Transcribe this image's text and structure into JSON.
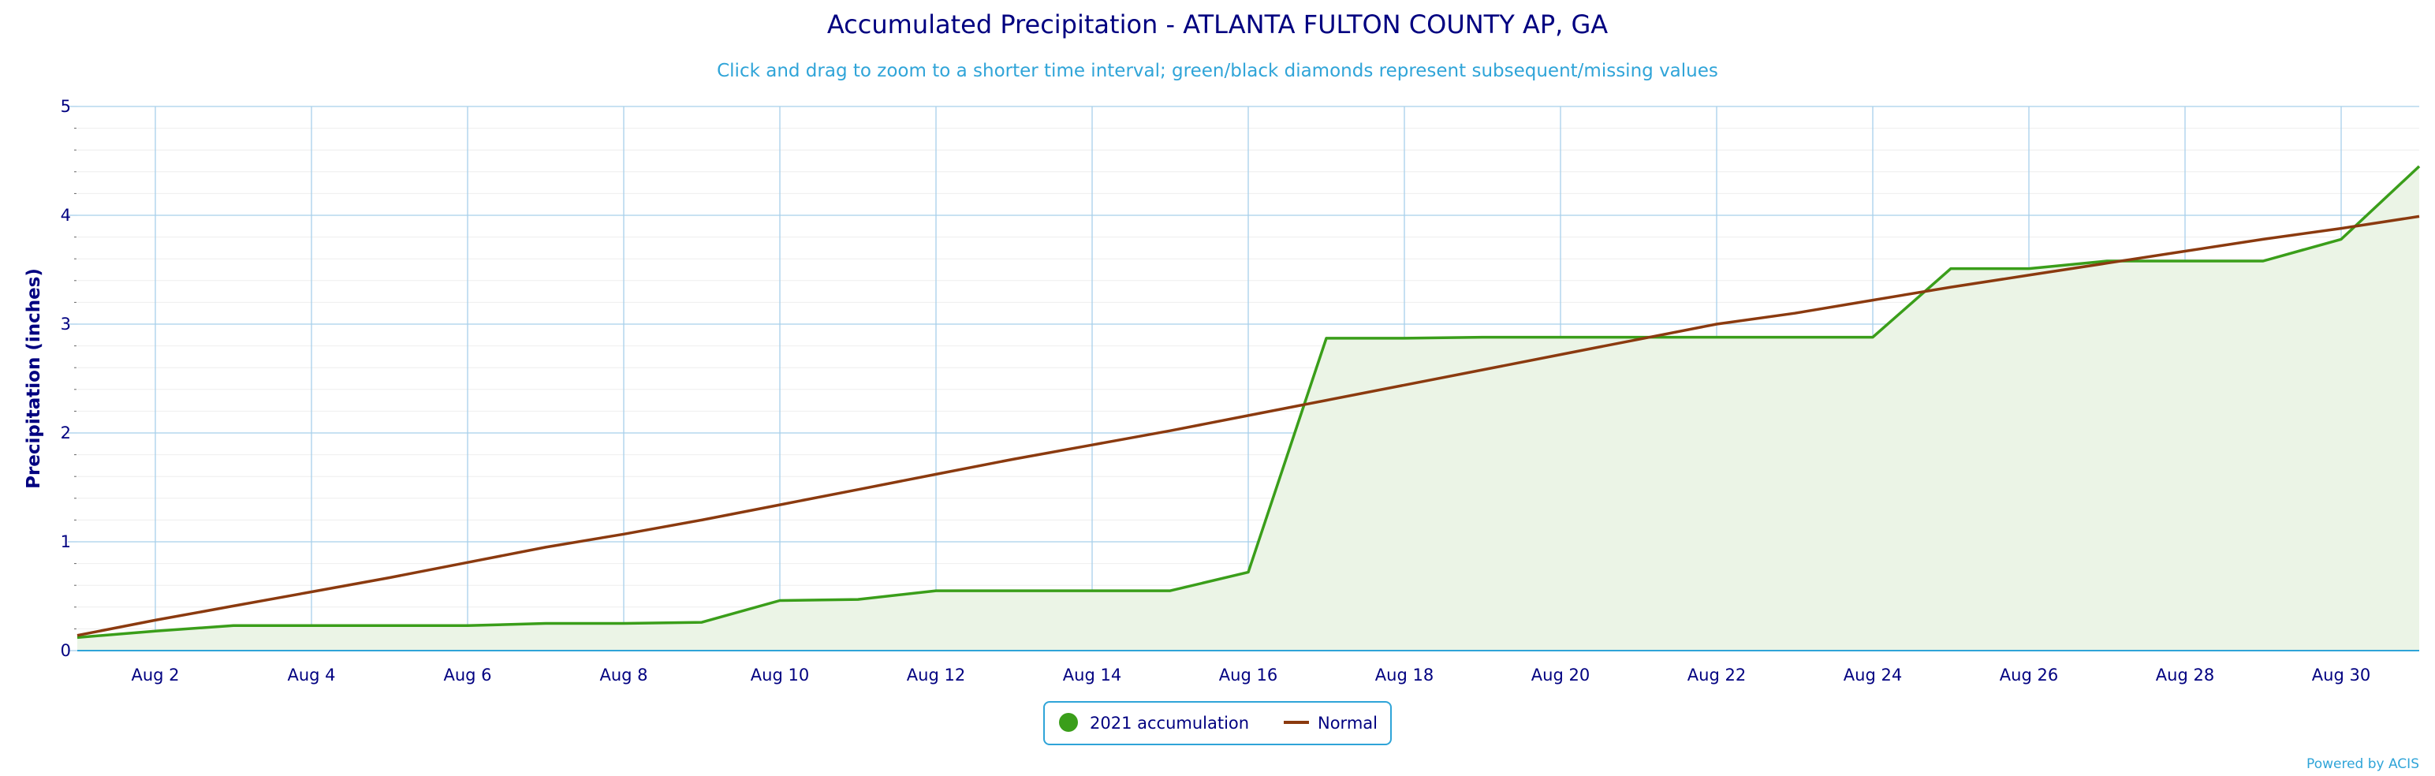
{
  "chart_data": {
    "type": "line",
    "title": "Accumulated Precipitation - ATLANTA FULTON COUNTY AP, GA",
    "subtitle": "Click and drag to zoom to a shorter time interval; green/black diamonds represent subsequent/missing values",
    "xlabel": "",
    "ylabel": "Precipitation (inches)",
    "ylim": [
      0,
      5
    ],
    "yticks": [
      "0",
      "1",
      "2",
      "3",
      "4",
      "5"
    ],
    "x": [
      "Aug 1",
      "Aug 2",
      "Aug 3",
      "Aug 4",
      "Aug 5",
      "Aug 6",
      "Aug 7",
      "Aug 8",
      "Aug 9",
      "Aug 10",
      "Aug 11",
      "Aug 12",
      "Aug 13",
      "Aug 14",
      "Aug 15",
      "Aug 16",
      "Aug 17",
      "Aug 18",
      "Aug 19",
      "Aug 20",
      "Aug 21",
      "Aug 22",
      "Aug 23",
      "Aug 24",
      "Aug 25",
      "Aug 26",
      "Aug 27",
      "Aug 28",
      "Aug 29",
      "Aug 30",
      "Aug 31"
    ],
    "xticks": [
      "Aug 2",
      "Aug 4",
      "Aug 6",
      "Aug 8",
      "Aug 10",
      "Aug 12",
      "Aug 14",
      "Aug 16",
      "Aug 18",
      "Aug 20",
      "Aug 22",
      "Aug 24",
      "Aug 26",
      "Aug 28",
      "Aug 30"
    ],
    "grid": true,
    "legend_position": "bottom-center",
    "series": [
      {
        "name": "2021 accumulation",
        "style": "area",
        "color": "#3a9e1a",
        "fill": "#ebf4e6",
        "values": [
          0.12,
          0.18,
          0.23,
          0.23,
          0.23,
          0.23,
          0.25,
          0.25,
          0.26,
          0.46,
          0.47,
          0.55,
          0.55,
          0.55,
          0.55,
          0.72,
          2.87,
          2.87,
          2.88,
          2.88,
          2.88,
          2.88,
          2.88,
          2.88,
          3.51,
          3.51,
          3.58,
          3.58,
          3.58,
          3.78,
          4.45
        ]
      },
      {
        "name": "Normal",
        "style": "line",
        "color": "#8b3a0f",
        "values": [
          0.14,
          0.28,
          0.41,
          0.54,
          0.67,
          0.81,
          0.95,
          1.07,
          1.2,
          1.34,
          1.48,
          1.62,
          1.76,
          1.89,
          2.02,
          2.16,
          2.3,
          2.44,
          2.58,
          2.72,
          2.86,
          3.0,
          3.1,
          3.22,
          3.34,
          3.45,
          3.56,
          3.67,
          3.78,
          3.88,
          3.99
        ]
      }
    ]
  },
  "credit": "Powered by ACIS",
  "colors": {
    "axis": "#2fa4d8",
    "grid": "#a8d0ea",
    "minor_grid": "#eeeeee",
    "text": "#000080",
    "legend_border": "#2fa4d8"
  }
}
